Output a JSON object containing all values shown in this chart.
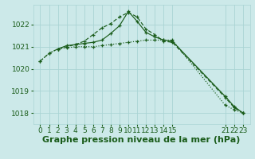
{
  "background_color": "#cce9e9",
  "grid_color": "#aad4d4",
  "line_color": "#1a5c1a",
  "series1_x": [
    0,
    1,
    2,
    3,
    4,
    5,
    6,
    7,
    8,
    9,
    10,
    11,
    12,
    13,
    14,
    15,
    21,
    22,
    23
  ],
  "series1_y": [
    1020.35,
    1020.7,
    1020.9,
    1020.95,
    1021.0,
    1021.0,
    1021.0,
    1021.05,
    1021.1,
    1021.15,
    1021.2,
    1021.25,
    1021.3,
    1021.3,
    1021.3,
    1021.3,
    1018.35,
    1018.15,
    1018.0
  ],
  "series2_x": [
    0,
    1,
    2,
    3,
    4,
    5,
    6,
    7,
    8,
    9,
    10,
    11,
    12,
    13,
    14,
    15,
    21,
    22,
    23
  ],
  "series2_y": [
    1020.35,
    1020.7,
    1020.9,
    1021.0,
    1021.1,
    1021.25,
    1021.55,
    1021.85,
    1022.05,
    1022.35,
    1022.55,
    1022.35,
    1021.8,
    1021.55,
    1021.25,
    1021.2,
    1018.7,
    1018.25,
    1018.0
  ],
  "series3_x": [
    2,
    3,
    4,
    5,
    6,
    7,
    8,
    9,
    10,
    11,
    12,
    13,
    14,
    15,
    21,
    22,
    23
  ],
  "series3_y": [
    1020.9,
    1021.05,
    1021.1,
    1021.15,
    1021.2,
    1021.3,
    1021.6,
    1021.95,
    1022.6,
    1022.15,
    1021.65,
    1021.45,
    1021.3,
    1021.25,
    1018.75,
    1018.3,
    1018.0
  ],
  "yticks": [
    1018,
    1019,
    1020,
    1021,
    1022
  ],
  "xtick_positions": [
    0,
    1,
    2,
    3,
    4,
    5,
    6,
    7,
    8,
    9,
    10,
    11,
    12,
    13,
    14,
    15,
    21,
    22,
    23
  ],
  "xtick_labels": [
    "0",
    "1",
    "2",
    "3",
    "4",
    "5",
    "6",
    "7",
    "8",
    "9",
    "10",
    "11",
    "12",
    "13",
    "14",
    "15",
    "21",
    "22",
    "23"
  ],
  "ylim": [
    1017.5,
    1022.9
  ],
  "xlim": [
    -0.8,
    23.8
  ],
  "xlabel": "Graphe pression niveau de la mer (hPa)",
  "tick_fontsize": 6.5,
  "xlabel_fontsize": 8
}
